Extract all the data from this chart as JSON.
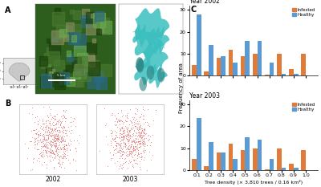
{
  "year2002": {
    "title": "Year 2002",
    "infested": [
      5,
      2,
      8,
      12,
      9,
      10,
      0.5,
      10,
      3,
      10
    ],
    "healthy": [
      28,
      14,
      9,
      6,
      16,
      16,
      6,
      1,
      1,
      0
    ]
  },
  "year2003": {
    "title": "Year 2003",
    "infested": [
      5,
      2,
      8,
      12,
      9,
      10,
      0.5,
      10,
      3,
      9
    ],
    "healthy": [
      24,
      13,
      8,
      5,
      15,
      14,
      5,
      1,
      1,
      0
    ]
  },
  "categories": [
    0.1,
    0.2,
    0.3,
    0.4,
    0.5,
    0.6,
    0.7,
    0.8,
    0.9,
    1.0
  ],
  "xlabel": "Tree density (× 3,810 trees / 0.16 km²)",
  "ylabel": "Frequency of area",
  "infested_color": "#E07B39",
  "healthy_color": "#5B9BD5",
  "ylim": [
    0,
    32
  ],
  "yticks": [
    0,
    10,
    20,
    30
  ],
  "bar_width": 0.038,
  "label_A": "A",
  "label_B": "B",
  "label_C": "C",
  "bg_color": "#f0f0f0",
  "sat_color": "#3a6b2a",
  "teal_color": "#3bbfbf",
  "inset_bg": "#e8e8e8"
}
